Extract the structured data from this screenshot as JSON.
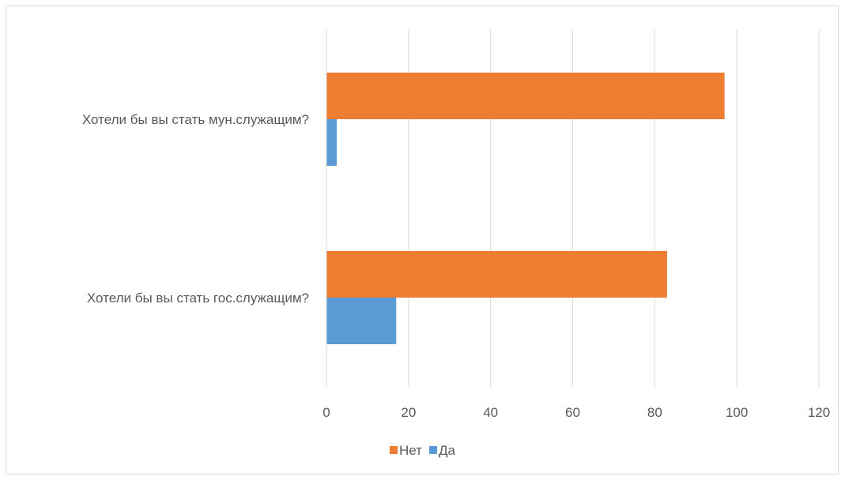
{
  "chart_data": {
    "type": "bar",
    "orientation": "horizontal",
    "categories": [
      "Хотели бы вы стать мун.служащим?",
      "Хотели бы вы стать гос.служащим?"
    ],
    "series": [
      {
        "name": "Нет",
        "color": "#ED7D31",
        "values": [
          97,
          83
        ]
      },
      {
        "name": "Да",
        "color": "#5B9BD5",
        "values": [
          2.5,
          17
        ]
      }
    ],
    "xlim": [
      0,
      120
    ],
    "x_ticks": [
      0,
      20,
      40,
      60,
      80,
      100,
      120
    ],
    "grid": true,
    "legend_position": "bottom"
  }
}
